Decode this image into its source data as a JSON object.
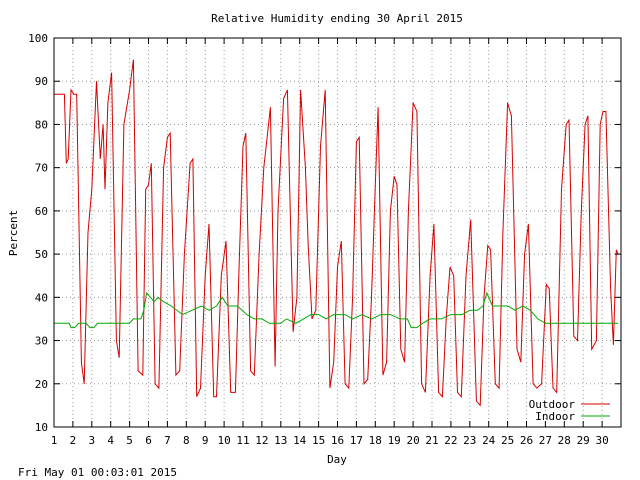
{
  "chart_data": {
    "type": "line",
    "title": "Relative Humidity ending 30 April 2015",
    "xlabel": "Day",
    "ylabel": "Percent",
    "xlim": [
      1,
      31
    ],
    "ylim": [
      10,
      100
    ],
    "x_ticks": [
      "1",
      "2",
      "3",
      "4",
      "5",
      "6",
      "7",
      "8",
      "9",
      "10",
      "11",
      "12",
      "13",
      "14",
      "15",
      "16",
      "17",
      "18",
      "19",
      "20",
      "21",
      "22",
      "23",
      "24",
      "25",
      "26",
      "27",
      "28",
      "29",
      "30"
    ],
    "y_ticks": [
      "10",
      "20",
      "30",
      "40",
      "50",
      "60",
      "70",
      "80",
      "90",
      "100"
    ],
    "grid": true,
    "legend_position": "bottom-right",
    "series": [
      {
        "name": "Outdoor",
        "color": "#d40000",
        "points": [
          [
            1.0,
            87
          ],
          [
            1.55,
            87
          ],
          [
            1.65,
            71
          ],
          [
            1.75,
            72
          ],
          [
            1.9,
            88
          ],
          [
            2.05,
            87
          ],
          [
            2.2,
            87
          ],
          [
            2.45,
            25
          ],
          [
            2.6,
            20
          ],
          [
            2.8,
            55
          ],
          [
            3.0,
            65
          ],
          [
            3.25,
            90
          ],
          [
            3.45,
            72
          ],
          [
            3.6,
            80
          ],
          [
            3.7,
            65
          ],
          [
            3.85,
            85
          ],
          [
            4.05,
            92
          ],
          [
            4.3,
            30
          ],
          [
            4.45,
            26
          ],
          [
            4.7,
            80
          ],
          [
            5.0,
            88
          ],
          [
            5.2,
            95
          ],
          [
            5.45,
            23
          ],
          [
            5.7,
            22
          ],
          [
            5.85,
            65
          ],
          [
            6.0,
            66
          ],
          [
            6.15,
            71
          ],
          [
            6.35,
            20
          ],
          [
            6.55,
            19
          ],
          [
            6.8,
            70
          ],
          [
            7.0,
            77
          ],
          [
            7.15,
            78
          ],
          [
            7.45,
            22
          ],
          [
            7.65,
            23
          ],
          [
            7.9,
            50
          ],
          [
            8.2,
            71
          ],
          [
            8.35,
            72
          ],
          [
            8.55,
            17
          ],
          [
            8.75,
            19
          ],
          [
            9.0,
            45
          ],
          [
            9.2,
            57
          ],
          [
            9.45,
            17
          ],
          [
            9.6,
            17
          ],
          [
            9.85,
            45
          ],
          [
            10.1,
            53
          ],
          [
            10.35,
            18
          ],
          [
            10.6,
            18
          ],
          [
            10.8,
            48
          ],
          [
            11.0,
            75
          ],
          [
            11.15,
            78
          ],
          [
            11.4,
            23
          ],
          [
            11.6,
            22
          ],
          [
            11.85,
            50
          ],
          [
            12.1,
            70
          ],
          [
            12.45,
            84
          ],
          [
            12.7,
            24
          ],
          [
            12.85,
            60
          ],
          [
            13.15,
            86
          ],
          [
            13.35,
            88
          ],
          [
            13.65,
            32
          ],
          [
            13.85,
            40
          ],
          [
            14.05,
            88
          ],
          [
            14.3,
            70
          ],
          [
            14.45,
            52
          ],
          [
            14.65,
            35
          ],
          [
            14.85,
            37
          ],
          [
            15.1,
            75
          ],
          [
            15.35,
            88
          ],
          [
            15.6,
            19
          ],
          [
            15.8,
            25
          ],
          [
            16.0,
            47
          ],
          [
            16.2,
            53
          ],
          [
            16.4,
            20
          ],
          [
            16.6,
            19
          ],
          [
            16.8,
            40
          ],
          [
            17.0,
            76
          ],
          [
            17.15,
            77
          ],
          [
            17.4,
            20
          ],
          [
            17.6,
            21
          ],
          [
            17.8,
            40
          ],
          [
            18.0,
            66
          ],
          [
            18.15,
            84
          ],
          [
            18.4,
            22
          ],
          [
            18.6,
            25
          ],
          [
            18.8,
            60
          ],
          [
            19.0,
            68
          ],
          [
            19.15,
            66
          ],
          [
            19.35,
            28
          ],
          [
            19.55,
            25
          ],
          [
            19.75,
            60
          ],
          [
            20.0,
            85
          ],
          [
            20.2,
            83
          ],
          [
            20.45,
            20
          ],
          [
            20.65,
            18
          ],
          [
            20.9,
            45
          ],
          [
            21.1,
            57
          ],
          [
            21.35,
            18
          ],
          [
            21.55,
            17
          ],
          [
            21.75,
            35
          ],
          [
            21.95,
            47
          ],
          [
            22.15,
            45
          ],
          [
            22.35,
            18
          ],
          [
            22.55,
            17
          ],
          [
            22.8,
            45
          ],
          [
            23.05,
            58
          ],
          [
            23.35,
            16
          ],
          [
            23.55,
            15
          ],
          [
            23.75,
            40
          ],
          [
            23.95,
            52
          ],
          [
            24.1,
            51
          ],
          [
            24.35,
            20
          ],
          [
            24.55,
            19
          ],
          [
            24.75,
            55
          ],
          [
            25.0,
            85
          ],
          [
            25.2,
            82
          ],
          [
            25.5,
            28
          ],
          [
            25.7,
            25
          ],
          [
            25.9,
            50
          ],
          [
            26.1,
            57
          ],
          [
            26.35,
            20
          ],
          [
            26.55,
            19
          ],
          [
            26.8,
            20
          ],
          [
            27.05,
            43
          ],
          [
            27.2,
            42
          ],
          [
            27.4,
            19
          ],
          [
            27.6,
            18
          ],
          [
            27.85,
            65
          ],
          [
            28.1,
            80
          ],
          [
            28.25,
            81
          ],
          [
            28.5,
            31
          ],
          [
            28.7,
            30
          ],
          [
            28.9,
            60
          ],
          [
            29.1,
            80
          ],
          [
            29.25,
            82
          ],
          [
            29.45,
            28
          ],
          [
            29.7,
            30
          ],
          [
            29.9,
            80
          ],
          [
            30.05,
            83
          ],
          [
            30.2,
            83
          ],
          [
            30.45,
            42
          ],
          [
            30.6,
            29
          ],
          [
            30.75,
            51
          ],
          [
            30.85,
            50
          ]
        ]
      },
      {
        "name": "Indoor",
        "color": "#00aa00",
        "points": [
          [
            1.0,
            34
          ],
          [
            1.8,
            34
          ],
          [
            1.9,
            33
          ],
          [
            2.1,
            33
          ],
          [
            2.3,
            34
          ],
          [
            2.7,
            34
          ],
          [
            2.9,
            33
          ],
          [
            3.1,
            33
          ],
          [
            3.3,
            34
          ],
          [
            5.0,
            34
          ],
          [
            5.2,
            35
          ],
          [
            5.6,
            35
          ],
          [
            5.75,
            37
          ],
          [
            5.9,
            41
          ],
          [
            6.1,
            40
          ],
          [
            6.3,
            39
          ],
          [
            6.5,
            40
          ],
          [
            6.8,
            39
          ],
          [
            7.2,
            38
          ],
          [
            7.8,
            36
          ],
          [
            8.3,
            37
          ],
          [
            8.8,
            38
          ],
          [
            9.2,
            37
          ],
          [
            9.6,
            38
          ],
          [
            9.9,
            40
          ],
          [
            10.2,
            38
          ],
          [
            10.7,
            38
          ],
          [
            11.2,
            36
          ],
          [
            11.6,
            35
          ],
          [
            12.0,
            35
          ],
          [
            12.4,
            34
          ],
          [
            13.0,
            34
          ],
          [
            13.3,
            35
          ],
          [
            13.8,
            34
          ],
          [
            14.2,
            35
          ],
          [
            14.6,
            36
          ],
          [
            15.0,
            36
          ],
          [
            15.4,
            35
          ],
          [
            15.8,
            36
          ],
          [
            16.4,
            36
          ],
          [
            16.8,
            35
          ],
          [
            17.3,
            36
          ],
          [
            17.8,
            35
          ],
          [
            18.3,
            36
          ],
          [
            18.8,
            36
          ],
          [
            19.3,
            35
          ],
          [
            19.7,
            35
          ],
          [
            19.9,
            33
          ],
          [
            20.2,
            33
          ],
          [
            20.5,
            34
          ],
          [
            20.9,
            35
          ],
          [
            21.5,
            35
          ],
          [
            22.0,
            36
          ],
          [
            22.6,
            36
          ],
          [
            23.0,
            37
          ],
          [
            23.4,
            37
          ],
          [
            23.7,
            38
          ],
          [
            23.9,
            41
          ],
          [
            24.2,
            38
          ],
          [
            24.6,
            38
          ],
          [
            25.0,
            38
          ],
          [
            25.4,
            37
          ],
          [
            25.8,
            38
          ],
          [
            26.2,
            37
          ],
          [
            26.6,
            35
          ],
          [
            27.0,
            34
          ],
          [
            27.5,
            34
          ],
          [
            28.0,
            34
          ],
          [
            29.0,
            34
          ],
          [
            30.0,
            34
          ],
          [
            30.85,
            34
          ]
        ]
      }
    ]
  },
  "footer": {
    "timestamp": "Fri May 01 00:03:01 2015"
  }
}
